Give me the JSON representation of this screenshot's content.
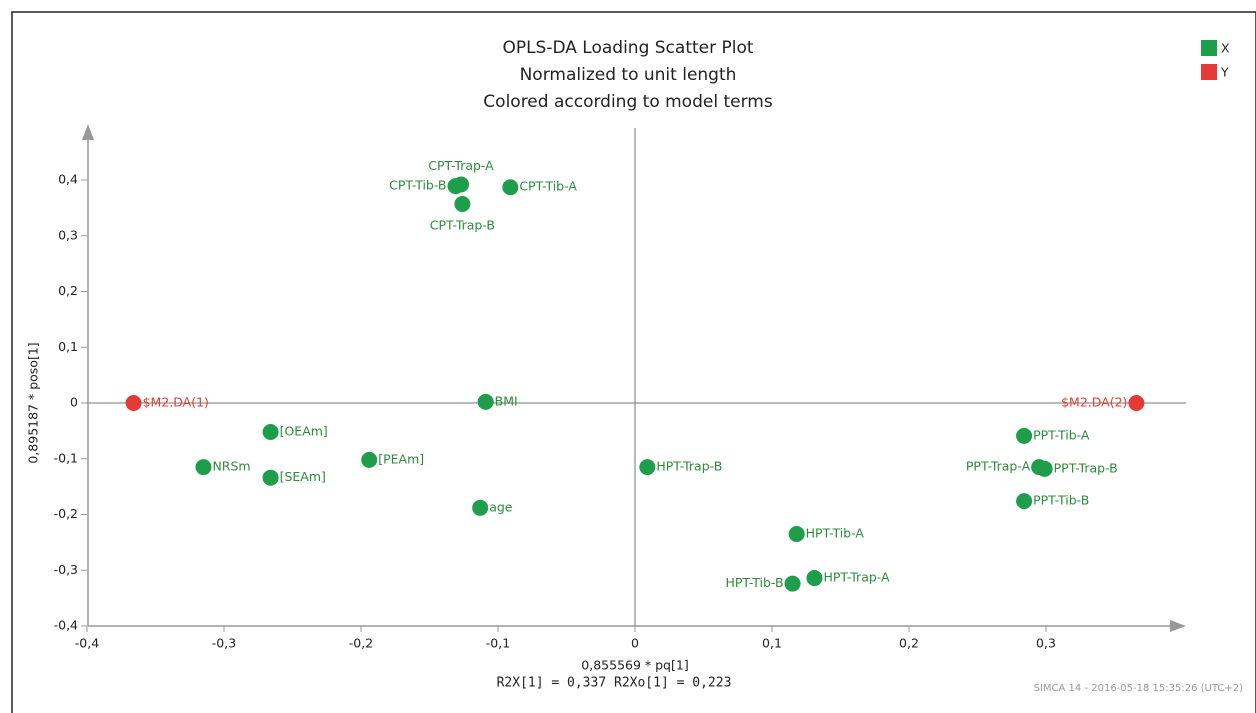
{
  "chart_data": {
    "type": "scatter",
    "title": [
      "OPLS-DA Loading Scatter Plot",
      "Normalized to unit length",
      "Colored according to model terms"
    ],
    "x_label": "0,855569 * pq[1]",
    "y_label": "0,895187 * poso[1]",
    "annotation": "R2X[1] = 0,337  R2Xo[1] = 0,223",
    "footer": "SIMCA 14 - 2016-05-18 15:35:26 (UTC+2)",
    "xlim": [
      -0.4,
      0.4
    ],
    "ylim": [
      -0.4,
      0.4
    ],
    "xticks": [
      {
        "value": -0.4,
        "label": "-0,4"
      },
      {
        "value": -0.3,
        "label": "-0,3"
      },
      {
        "value": -0.2,
        "label": "-0,2"
      },
      {
        "value": -0.1,
        "label": "-0,1"
      },
      0,
      {
        "value": 0.1,
        "label": "0,1"
      },
      {
        "value": 0.2,
        "label": "0,2"
      },
      {
        "value": 0.3,
        "label": "0,3"
      }
    ],
    "yticks": [
      {
        "value": -0.4,
        "label": "-0,4"
      },
      {
        "value": -0.3,
        "label": "-0,3"
      },
      {
        "value": -0.2,
        "label": "-0,2"
      },
      {
        "value": -0.1,
        "label": "-0,1"
      },
      0,
      {
        "value": 0.1,
        "label": "0,1"
      },
      {
        "value": 0.2,
        "label": "0,2"
      },
      {
        "value": 0.3,
        "label": "0,3"
      },
      {
        "value": 0.4,
        "label": "0,4"
      }
    ],
    "legend": "top-right",
    "series": [
      {
        "name": "X",
        "color": "#1e9e4a",
        "label_color": "#2e8b3e",
        "labels": [
          "CPT-Trap-A",
          "CPT-Tib-B",
          "CPT-Tib-A",
          "CPT-Trap-B",
          "BMI",
          "[OEAm]",
          "NRSm",
          "[SEAm]",
          "[PEAm]",
          "age",
          "HPT-Trap-B",
          "HPT-Tib-A",
          "HPT-Tib-B",
          "HPT-Trap-A",
          "PPT-Tib-A",
          "PPT-Trap-A",
          "PPT-Trap-B",
          "PPT-Tib-B"
        ],
        "x": [
          -0.127,
          -0.131,
          -0.091,
          -0.126,
          -0.109,
          -0.266,
          -0.315,
          -0.266,
          -0.194,
          -0.113,
          0.009,
          0.118,
          0.115,
          0.131,
          0.284,
          0.295,
          0.299,
          0.284
        ],
        "values": [
          0.392,
          0.389,
          0.387,
          0.357,
          0.002,
          -0.052,
          -0.115,
          -0.134,
          -0.102,
          -0.188,
          -0.115,
          -0.235,
          -0.324,
          -0.314,
          -0.059,
          -0.115,
          -0.118,
          -0.176
        ]
      },
      {
        "name": "Y",
        "color": "#e53935",
        "label_color": "#e0402f",
        "labels": [
          "$M2.DA(1)",
          "$M2.DA(2)"
        ],
        "x": [
          -0.366,
          0.366
        ],
        "values": [
          0,
          0
        ]
      }
    ]
  }
}
